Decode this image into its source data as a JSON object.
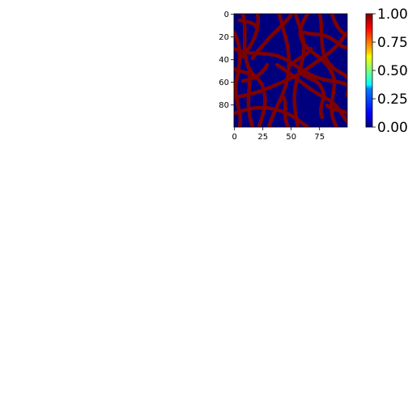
{
  "chart_data": {
    "type": "heatmap",
    "title": "",
    "xlabel": "",
    "ylabel": "",
    "shape": [
      100,
      100
    ],
    "xlim": [
      0,
      99
    ],
    "ylim": [
      99,
      0
    ],
    "x_tick_labels": [
      "0",
      "25",
      "50",
      "75"
    ],
    "y_tick_labels": [
      "0",
      "20",
      "40",
      "60",
      "80"
    ],
    "colormap": "jet",
    "color_range": [
      0.0,
      1.0
    ],
    "colorbar_tick_labels": [
      "0.00",
      "0.25",
      "0.50",
      "0.75",
      "1.00"
    ],
    "values_present": [
      0,
      1
    ],
    "fraction_at_1": 0.35,
    "low_color": "#00007f",
    "high_color": "#7f0000",
    "description_of_values": "binary mask: branching network of thin curved strands with value 1 on a background of 0"
  }
}
